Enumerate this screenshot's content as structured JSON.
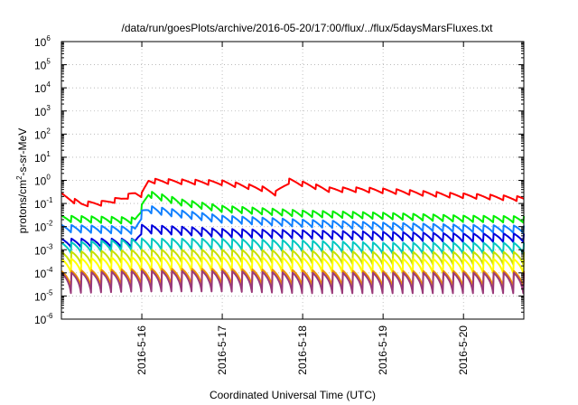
{
  "chart_data": {
    "type": "line",
    "title": "/data/run/goesPlots/archive/2016-05-20/17:00/flux/../flux/5daysMarsFluxes.txt",
    "xlabel": "Coordinated Universal Time (UTC)",
    "ylabel": "protons/cm2-s-sr-MeV",
    "ylabel_parts": {
      "before": "protons/cm",
      "sup": "2",
      "after": "-s-sr-MeV"
    },
    "yscale": "log",
    "ylim_exp": [
      -6,
      6
    ],
    "y_tick_base": "10",
    "y_tick_exponents": [
      "-6",
      "-5",
      "-4",
      "-3",
      "-2",
      "-1",
      "0",
      "1",
      "2",
      "3",
      "4",
      "5",
      "6"
    ],
    "xlim": [
      "2016-05-15T00:00",
      "2016-05-20T18:00"
    ],
    "x_ticks": [
      {
        "label": "2016-5-16",
        "t": "2016-05-16T00:00"
      },
      {
        "label": "2016-5-17",
        "t": "2016-05-17T00:00"
      },
      {
        "label": "2016-5-18",
        "t": "2016-05-18T00:00"
      },
      {
        "label": "2016-5-19",
        "t": "2016-05-19T00:00"
      },
      {
        "label": "2016-5-20",
        "t": "2016-05-20T00:00"
      }
    ],
    "grid": true,
    "series": [
      {
        "color": "#ff0000",
        "period_hours": 4.0,
        "dip": 0.6,
        "profile": [
          [
            "2016-05-15T00:00",
            0.28
          ],
          [
            "2016-05-15T06:00",
            0.12
          ],
          [
            "2016-05-15T12:00",
            0.13
          ],
          [
            "2016-05-15T18:00",
            0.2
          ],
          [
            "2016-05-15T22:00",
            0.35
          ],
          [
            "2016-05-16T00:00",
            0.3
          ],
          [
            "2016-05-16T02:00",
            1.2
          ],
          [
            "2016-05-16T12:00",
            1.1
          ],
          [
            "2016-05-17T00:00",
            1.0
          ],
          [
            "2016-05-17T12:00",
            0.55
          ],
          [
            "2016-05-17T16:00",
            0.35
          ],
          [
            "2016-05-17T20:00",
            1.2
          ],
          [
            "2016-05-18T08:00",
            0.5
          ],
          [
            "2016-05-18T18:00",
            0.5
          ],
          [
            "2016-05-19T06:00",
            0.4
          ],
          [
            "2016-05-19T18:00",
            0.3
          ],
          [
            "2016-05-20T06:00",
            0.25
          ],
          [
            "2016-05-20T18:00",
            0.2
          ]
        ]
      },
      {
        "color": "#00ee00",
        "period_hours": 3.0,
        "dip": 0.5,
        "profile": [
          [
            "2016-05-15T00:00",
            0.03
          ],
          [
            "2016-05-15T22:00",
            0.025
          ],
          [
            "2016-05-16T00:00",
            0.09
          ],
          [
            "2016-05-16T02:00",
            0.35
          ],
          [
            "2016-05-16T12:00",
            0.15
          ],
          [
            "2016-05-17T00:00",
            0.08
          ],
          [
            "2016-05-18T00:00",
            0.05
          ],
          [
            "2016-05-19T00:00",
            0.04
          ],
          [
            "2016-05-20T00:00",
            0.03
          ],
          [
            "2016-05-20T18:00",
            0.028
          ]
        ]
      },
      {
        "color": "#1080ff",
        "period_hours": 3.0,
        "dip": 0.45,
        "profile": [
          [
            "2016-05-15T00:00",
            0.012
          ],
          [
            "2016-05-15T22:00",
            0.01
          ],
          [
            "2016-05-16T00:00",
            0.05
          ],
          [
            "2016-05-16T02:00",
            0.08
          ],
          [
            "2016-05-16T12:00",
            0.05
          ],
          [
            "2016-05-17T00:00",
            0.03
          ],
          [
            "2016-05-18T00:00",
            0.02
          ],
          [
            "2016-05-19T00:00",
            0.015
          ],
          [
            "2016-05-20T00:00",
            0.012
          ],
          [
            "2016-05-20T18:00",
            0.011
          ]
        ]
      },
      {
        "color": "#0000dd",
        "period_hours": 3.0,
        "dip": 0.4,
        "profile": [
          [
            "2016-05-15T00:00",
            0.003
          ],
          [
            "2016-05-15T22:00",
            0.003
          ],
          [
            "2016-05-16T00:00",
            0.012
          ],
          [
            "2016-05-16T12:00",
            0.01
          ],
          [
            "2016-05-17T00:00",
            0.008
          ],
          [
            "2016-05-18T00:00",
            0.007
          ],
          [
            "2016-05-19T00:00",
            0.006
          ],
          [
            "2016-05-20T00:00",
            0.005
          ],
          [
            "2016-05-20T18:00",
            0.005
          ]
        ]
      },
      {
        "color": "#00c8c0",
        "period_hours": 3.0,
        "dip": 0.3,
        "profile": [
          [
            "2016-05-15T00:00",
            0.002
          ],
          [
            "2016-05-16T00:00",
            0.003
          ],
          [
            "2016-05-17T00:00",
            0.003
          ],
          [
            "2016-05-18T00:00",
            0.0025
          ],
          [
            "2016-05-19T00:00",
            0.002
          ],
          [
            "2016-05-20T00:00",
            0.002
          ],
          [
            "2016-05-20T18:00",
            0.002
          ]
        ]
      },
      {
        "color": "#c8e000",
        "period_hours": 3.0,
        "dip": 0.25,
        "profile": [
          [
            "2016-05-15T00:00",
            0.0008
          ],
          [
            "2016-05-16T00:00",
            0.001
          ],
          [
            "2016-05-17T00:00",
            0.001
          ],
          [
            "2016-05-18T00:00",
            0.0009
          ],
          [
            "2016-05-19T00:00",
            0.0008
          ],
          [
            "2016-05-20T00:00",
            0.0008
          ],
          [
            "2016-05-20T18:00",
            0.0008
          ]
        ]
      },
      {
        "color": "#ffff00",
        "period_hours": 3.0,
        "dip": 0.2,
        "profile": [
          [
            "2016-05-15T00:00",
            0.0004
          ],
          [
            "2016-05-16T00:00",
            0.0005
          ],
          [
            "2016-05-17T00:00",
            0.0005
          ],
          [
            "2016-05-18T00:00",
            0.00045
          ],
          [
            "2016-05-19T00:00",
            0.0004
          ],
          [
            "2016-05-20T00:00",
            0.0004
          ],
          [
            "2016-05-20T18:00",
            0.0004
          ]
        ]
      },
      {
        "color": "#ee9000",
        "period_hours": 3.0,
        "dip": 0.15,
        "profile": [
          [
            "2016-05-15T00:00",
            0.00012
          ],
          [
            "2016-05-16T00:00",
            0.00015
          ],
          [
            "2016-05-17T00:00",
            0.00015
          ],
          [
            "2016-05-18T00:00",
            0.00013
          ],
          [
            "2016-05-19T00:00",
            0.00012
          ],
          [
            "2016-05-20T00:00",
            0.00012
          ],
          [
            "2016-05-20T18:00",
            0.00012
          ]
        ]
      },
      {
        "color": "#9a3a7a",
        "period_hours": 3.0,
        "dip": 0.08,
        "profile": [
          [
            "2016-05-15T00:00",
            0.0001
          ],
          [
            "2016-05-16T00:00",
            0.00012
          ],
          [
            "2016-05-17T00:00",
            0.00012
          ],
          [
            "2016-05-18T00:00",
            0.0001
          ],
          [
            "2016-05-19T00:00",
            0.0001
          ],
          [
            "2016-05-20T00:00",
            0.0001
          ],
          [
            "2016-05-20T18:00",
            0.0001
          ]
        ]
      }
    ]
  }
}
